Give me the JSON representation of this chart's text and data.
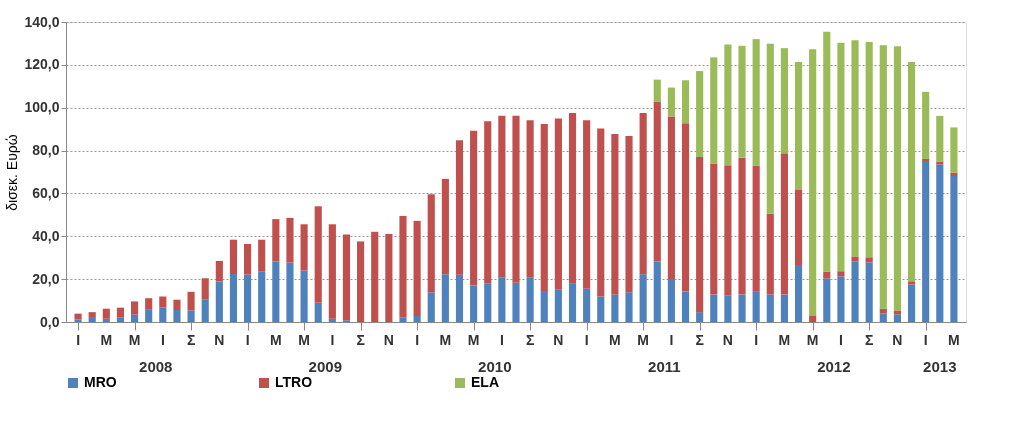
{
  "chart_data": {
    "type": "bar",
    "stacked": true,
    "ylabel": "δισεκ. Ευρώ",
    "categories": [
      "I",
      null,
      "M",
      null,
      "M",
      null,
      "I",
      null,
      "Σ",
      null,
      "N",
      null,
      "I",
      null,
      "M",
      null,
      "M",
      null,
      "I",
      null,
      "Σ",
      null,
      "N",
      null,
      "I",
      null,
      "M",
      null,
      "M",
      null,
      "I",
      null,
      "Σ",
      null,
      "N",
      null,
      "I",
      null,
      "M",
      null,
      "M",
      null,
      "I",
      null,
      "Σ",
      null,
      "N",
      null,
      "I",
      null,
      "M",
      null,
      "M",
      null,
      "I",
      null,
      "Σ",
      null,
      "N",
      null,
      "I",
      null,
      "M"
    ],
    "series": [
      {
        "name": "MRO",
        "color": "#4f81bd",
        "values": [
          1.1,
          1.9,
          1.5,
          2.0,
          3.4,
          6.0,
          6.7,
          5.6,
          5.4,
          10.4,
          18.9,
          22.4,
          22.1,
          23.7,
          28.3,
          27.7,
          24.0,
          9.0,
          1.5,
          0.8,
          null,
          0,
          0,
          2.0,
          2.8,
          13.9,
          22.3,
          22.1,
          17.0,
          18.1,
          20.9,
          18.3,
          20.9,
          14.5,
          15.3,
          17.9,
          15.5,
          11.9,
          12.7,
          13.9,
          22.3,
          28.3,
          20.1,
          14.2,
          4.6,
          12.8,
          12.4,
          12.8,
          14.4,
          12.8,
          12.8,
          26.6,
          0,
          20.4,
          21.3,
          28.3,
          27.8,
          3.9,
          3.6,
          17.5,
          74.7,
          73.5,
          68.1
        ]
      },
      {
        "name": "LTRO",
        "color": "#c0504d",
        "values": [
          2.8,
          2.7,
          4.7,
          4.7,
          6.2,
          5.1,
          5.2,
          4.8,
          8.7,
          10.0,
          9.6,
          16.0,
          14.3,
          14.7,
          19.7,
          20.9,
          21.6,
          45.0,
          44.1,
          40.0,
          37.6,
          42.1,
          41.1,
          47.5,
          44.4,
          45.7,
          44.5,
          62.7,
          72.3,
          75.6,
          75.3,
          77.9,
          73.3,
          77.9,
          79.7,
          79.6,
          78.7,
          78.4,
          75.0,
          72.9,
          75.2,
          74.6,
          75.8,
          78.6,
          72.4,
          61.0,
          60.8,
          63.9,
          58.6,
          37.8,
          65.9,
          35.3,
          3.1,
          3.1,
          2.4,
          2.3,
          2.4,
          2.3,
          1.8,
          1.5,
          1.4,
          1.4,
          1.5
        ]
      },
      {
        "name": "ELA",
        "color": "#9bbb59",
        "values": [
          0,
          0,
          0,
          0,
          0,
          0,
          0,
          0,
          0,
          0,
          0,
          0,
          0,
          0,
          0,
          0,
          0,
          0,
          0,
          0,
          0,
          0,
          0,
          0,
          0,
          0,
          0,
          0,
          0,
          0,
          0,
          0,
          0,
          0,
          0,
          0,
          0,
          0,
          0,
          0,
          0,
          10.2,
          13.5,
          20.0,
          40.1,
          49.7,
          56.3,
          52.2,
          59.0,
          79.3,
          49.1,
          59.4,
          124.2,
          111.9,
          106.6,
          100.9,
          100.5,
          123.0,
          123.3,
          102.3,
          31.3,
          21.3,
          21.2
        ]
      }
    ],
    "ylim": [
      0,
      140
    ],
    "yticks": [
      {
        "value": 0,
        "label": "0,0"
      },
      {
        "value": 20,
        "label": "20,0"
      },
      {
        "value": 40,
        "label": "40,0"
      },
      {
        "value": 60,
        "label": "60,0"
      },
      {
        "value": 80,
        "label": "80,0"
      },
      {
        "value": 100,
        "label": "100,0"
      },
      {
        "value": 120,
        "label": "120,0"
      },
      {
        "value": 140,
        "label": "140,0"
      }
    ],
    "grid": "y",
    "legend": "bottom",
    "annotations": [
      "2008",
      "2009",
      "2010",
      "2011",
      "2012",
      "2013"
    ]
  }
}
